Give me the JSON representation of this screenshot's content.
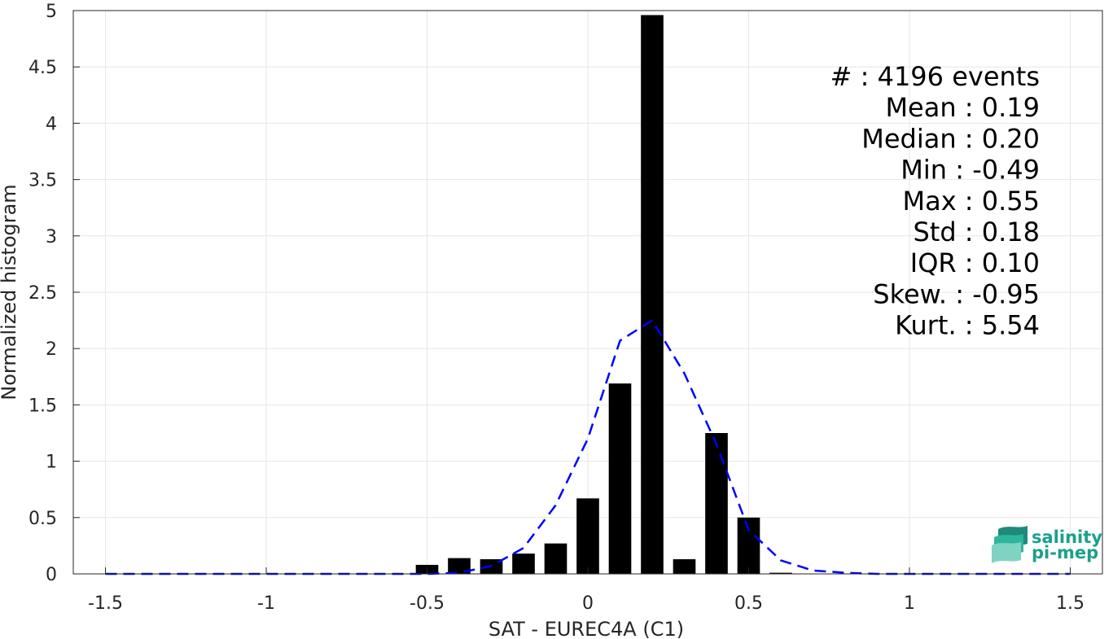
{
  "chart_data": {
    "type": "bar",
    "xlabel": "SAT - EUREC4A (C1)",
    "ylabel": "Normalized histogram",
    "xlim": [
      -1.6,
      1.6
    ],
    "ylim": [
      0,
      5
    ],
    "xticks": [
      -1.5,
      -1,
      -0.5,
      0,
      0.5,
      1,
      1.5
    ],
    "xtick_labels": [
      "-1.5",
      "-1",
      "-0.5",
      "0",
      "0.5",
      "1",
      "1.5"
    ],
    "yticks": [
      0,
      0.5,
      1,
      1.5,
      2,
      2.5,
      3,
      3.5,
      4,
      4.5,
      5
    ],
    "ytick_labels": [
      "0",
      "0.5",
      "1",
      "1.5",
      "2",
      "2.5",
      "3",
      "3.5",
      "4",
      "4.5",
      "5"
    ],
    "grid": true,
    "bar_width": 0.07,
    "bar_color": "#000000",
    "bars": {
      "x": [
        -0.5,
        -0.4,
        -0.3,
        -0.2,
        -0.1,
        0.0,
        0.1,
        0.2,
        0.3,
        0.4,
        0.5,
        0.6
      ],
      "values": [
        0.08,
        0.14,
        0.13,
        0.18,
        0.27,
        0.67,
        1.69,
        4.96,
        0.13,
        1.25,
        0.5,
        0.01
      ]
    },
    "fit_curve": {
      "style": "dashed",
      "color": "#0000ff",
      "x": [
        -1.5,
        -1.4,
        -1.3,
        -1.2,
        -1.1,
        -1.0,
        -0.9,
        -0.8,
        -0.7,
        -0.6,
        -0.5,
        -0.4,
        -0.3,
        -0.2,
        -0.1,
        0.0,
        0.1,
        0.2,
        0.3,
        0.4,
        0.5,
        0.6,
        0.7,
        0.8,
        0.9,
        1.0,
        1.1,
        1.2,
        1.3,
        1.4,
        1.5
      ],
      "y": [
        0,
        0,
        0,
        0,
        0,
        0,
        0,
        0,
        0,
        0,
        0,
        0.01,
        0.07,
        0.23,
        0.61,
        1.2,
        2.07,
        2.25,
        1.78,
        1.15,
        0.39,
        0.12,
        0.03,
        0.01,
        0,
        0,
        0,
        0,
        0,
        0,
        0
      ]
    },
    "stats": [
      {
        "label": "#",
        "sep": ":",
        "value": "4196 events"
      },
      {
        "label": "Mean",
        "sep": ":",
        "value": "0.19"
      },
      {
        "label": "Median",
        "sep": ":",
        "value": "0.20"
      },
      {
        "label": "Min",
        "sep": ":",
        "value": "-0.49"
      },
      {
        "label": "Max",
        "sep": ":",
        "value": "0.55"
      },
      {
        "label": "Std",
        "sep": ":",
        "value": "0.18"
      },
      {
        "label": "IQR",
        "sep": ":",
        "value": "0.10"
      },
      {
        "label": "Skew.",
        "sep": ":",
        "value": "-0.95"
      },
      {
        "label": "Kurt.",
        "sep": ":",
        "value": "5.54"
      }
    ]
  },
  "logo": {
    "line1": "salinity",
    "line2": "pi-mep",
    "colors": [
      "#1aa08a",
      "#1d8a7a",
      "#2fb59c",
      "#7fd3c3"
    ]
  }
}
